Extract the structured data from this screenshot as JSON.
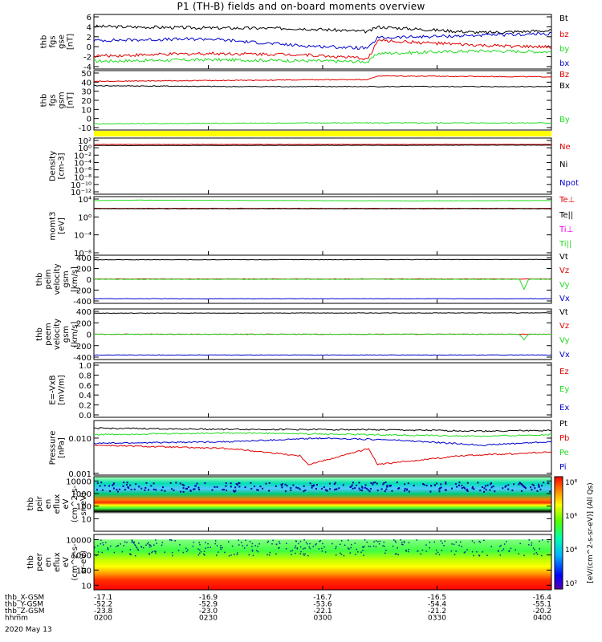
{
  "title": "P1 (TH-B) fields and on-board moments overview",
  "colors": {
    "black": "#000000",
    "red": "#e00000",
    "green": "#22dd22",
    "blue": "#0000cc",
    "magenta": "#ee00ee",
    "yellow": "#ffff00",
    "darkred": "#8b0000"
  },
  "chart_data": [
    {
      "type": "line",
      "id": "fgs_gse",
      "ylabel": [
        "thb",
        "fgs",
        "gse",
        "[nT]"
      ],
      "ylim": [
        -4,
        6.5
      ],
      "yticks": [
        "6",
        "4",
        "2",
        "0",
        "-2",
        "-4"
      ],
      "legend": [
        "Bt",
        "bz",
        "by",
        "bx"
      ],
      "legend_colors": [
        "black",
        "red",
        "green",
        "blue"
      ],
      "series": [
        {
          "name": "Bt",
          "color": "black",
          "x": [
            0,
            0.25,
            0.45,
            0.6,
            0.62,
            0.85,
            1
          ],
          "values": [
            4.2,
            3.9,
            3.8,
            3.2,
            4.1,
            3.0,
            3.4
          ]
        },
        {
          "name": "bz",
          "color": "red",
          "x": [
            0,
            0.25,
            0.45,
            0.6,
            0.62,
            0.85,
            1
          ],
          "values": [
            -1.5,
            -1.0,
            -1.2,
            -2.0,
            1.5,
            0.5,
            0.2
          ]
        },
        {
          "name": "by",
          "color": "green",
          "x": [
            0,
            0.25,
            0.45,
            0.6,
            0.62,
            0.85,
            1
          ],
          "values": [
            -2.5,
            -2.2,
            -2.4,
            -2.6,
            -1.0,
            -0.5,
            -0.7
          ]
        },
        {
          "name": "bx",
          "color": "blue",
          "x": [
            0,
            0.25,
            0.45,
            0.6,
            0.62,
            0.85,
            1
          ],
          "values": [
            1.5,
            1.8,
            0.5,
            0.0,
            2.0,
            2.5,
            2.8
          ]
        }
      ]
    },
    {
      "type": "line",
      "id": "fgs_gsm",
      "ylabel": [
        "thb",
        "fgs",
        "gsm",
        "[nT]"
      ],
      "ylim": [
        -15,
        52
      ],
      "yticks": [
        "50",
        "40",
        "30",
        "20",
        "10",
        "0",
        "-10"
      ],
      "legend": [
        "Bz",
        "Bx",
        "By"
      ],
      "legend_colors": [
        "red",
        "black",
        "green"
      ],
      "series": [
        {
          "name": "Bz",
          "color": "red",
          "x": [
            0,
            0.3,
            0.6,
            0.62,
            1
          ],
          "values": [
            40,
            41,
            42,
            46,
            45
          ]
        },
        {
          "name": "Bx",
          "color": "black",
          "x": [
            0,
            0.3,
            0.6,
            1
          ],
          "values": [
            35,
            34,
            34,
            34
          ]
        },
        {
          "name": "By",
          "color": "green",
          "x": [
            0,
            0.5,
            1
          ],
          "values": [
            -8,
            -7,
            -7
          ]
        }
      ]
    },
    {
      "type": "line",
      "id": "density",
      "log": true,
      "ylabel": [
        "Density",
        "[cm-3]"
      ],
      "ylim": [
        -13,
        2
      ],
      "yticks": [
        "10²",
        "10⁰",
        "10⁻²",
        "10⁻⁴",
        "10⁻⁶",
        "10⁻⁸",
        "10⁻¹⁰",
        "10⁻¹²"
      ],
      "legend": [
        "Ne",
        "Ni",
        "Npot"
      ],
      "legend_colors": [
        "red",
        "black",
        "blue"
      ],
      "series": [
        {
          "name": "Ne",
          "color": "red",
          "x": [
            0,
            1
          ],
          "values": [
            0.3,
            0.3
          ]
        },
        {
          "name": "Ni",
          "color": "black",
          "x": [
            0,
            1
          ],
          "values": [
            0.0,
            0.1
          ]
        }
      ]
    },
    {
      "type": "line",
      "id": "momt3",
      "log": true,
      "ylabel": [
        "momt3",
        "[eV]"
      ],
      "ylim": [
        -12,
        4.5
      ],
      "yticks": [
        "10⁴",
        "10⁰",
        "10⁻⁴",
        "10⁻⁸"
      ],
      "legend": [
        "Te⊥",
        "Te||",
        "Ti⊥",
        "Ti||"
      ],
      "legend_colors": [
        "red",
        "black",
        "magenta",
        "green"
      ],
      "series": [
        {
          "name": "Te⊥",
          "color": "red",
          "x": [
            0,
            1
          ],
          "values": [
            1.2,
            1.2
          ]
        },
        {
          "name": "Te||",
          "color": "black",
          "x": [
            0,
            1
          ],
          "values": [
            1.1,
            1.1
          ]
        },
        {
          "name": "Ti||",
          "color": "green",
          "x": [
            0,
            0.1,
            0.7,
            1
          ],
          "values": [
            3.4,
            3.5,
            3.3,
            3.4
          ]
        }
      ]
    },
    {
      "type": "line",
      "id": "peim",
      "ylabel": [
        "thb",
        "peim",
        "velocity",
        "gsm",
        "[km/s]"
      ],
      "ylim": [
        -420,
        420
      ],
      "yticks": [
        "400",
        "200",
        "0",
        "-200",
        "-400"
      ],
      "legend": [
        "Vt",
        "Vz",
        "Vy",
        "Vx"
      ],
      "legend_colors": [
        "black",
        "red",
        "green",
        "blue"
      ],
      "series": [
        {
          "name": "Vt",
          "color": "black",
          "x": [
            0,
            1
          ],
          "values": [
            340,
            345
          ]
        },
        {
          "name": "Vz",
          "color": "red",
          "x": [
            0,
            1
          ],
          "values": [
            5,
            5
          ]
        },
        {
          "name": "Vy",
          "color": "green",
          "x": [
            0,
            0.93,
            0.94,
            0.95,
            1
          ],
          "values": [
            0,
            0,
            -180,
            0,
            0
          ]
        },
        {
          "name": "Vx",
          "color": "blue",
          "x": [
            0,
            1
          ],
          "values": [
            -340,
            -340
          ]
        }
      ]
    },
    {
      "type": "line",
      "id": "peem",
      "ylabel": [
        "thb",
        "peem",
        "velocity",
        "gsm",
        "[km/s]"
      ],
      "ylim": [
        -420,
        420
      ],
      "yticks": [
        "400",
        "200",
        "0",
        "-200",
        "-400"
      ],
      "legend": [
        "Vt",
        "Vz",
        "Vy",
        "Vx"
      ],
      "legend_colors": [
        "black",
        "red",
        "green",
        "blue"
      ],
      "series": [
        {
          "name": "Vt",
          "color": "black",
          "x": [
            0,
            1
          ],
          "values": [
            350,
            355
          ]
        },
        {
          "name": "Vz",
          "color": "red",
          "x": [
            0,
            1
          ],
          "values": [
            0,
            0
          ]
        },
        {
          "name": "Vy",
          "color": "green",
          "x": [
            0,
            0.93,
            0.94,
            0.95,
            1
          ],
          "values": [
            0,
            0,
            -90,
            0,
            0
          ]
        },
        {
          "name": "Vx",
          "color": "blue",
          "x": [
            0,
            1
          ],
          "values": [
            -345,
            -345
          ]
        }
      ]
    },
    {
      "type": "line",
      "id": "efield",
      "ylabel": [
        "E=-VxB",
        "[mV/m]"
      ],
      "ylim": [
        0,
        1
      ],
      "yticks": [
        "1.0",
        "0.8",
        "0.6",
        "0.4",
        "0.2",
        "0.0"
      ],
      "legend": [
        "Ez",
        "Ey",
        "Ex"
      ],
      "legend_colors": [
        "red",
        "green",
        "blue"
      ],
      "series": []
    },
    {
      "type": "line",
      "id": "pressure",
      "log": true,
      "ylabel": [
        "Pressure",
        "[nPa]"
      ],
      "ylim": [
        -3.05,
        -1.5
      ],
      "yticks": [
        "0.010",
        "0.001"
      ],
      "ytick_values": [
        -2,
        -3
      ],
      "legend": [
        "Pt",
        "Pb",
        "Pe",
        "Pi"
      ],
      "legend_colors": [
        "black",
        "red",
        "green",
        "blue"
      ],
      "series": [
        {
          "name": "Pt",
          "color": "black",
          "x": [
            0,
            0.3,
            0.6,
            0.85,
            1
          ],
          "values": [
            -1.72,
            -1.75,
            -1.76,
            -1.8,
            -1.78
          ]
        },
        {
          "name": "Pb",
          "color": "red",
          "x": [
            0,
            0.3,
            0.45,
            0.47,
            0.6,
            0.62,
            0.8,
            1
          ],
          "values": [
            -2.2,
            -2.3,
            -2.5,
            -2.75,
            -2.3,
            -2.75,
            -2.5,
            -2.4
          ]
        },
        {
          "name": "Pe",
          "color": "green",
          "x": [
            0,
            0.3,
            0.6,
            0.85,
            1
          ],
          "values": [
            -1.9,
            -1.85,
            -1.9,
            -1.95,
            -1.9
          ]
        },
        {
          "name": "Pi",
          "color": "blue",
          "x": [
            0,
            0.3,
            0.5,
            0.65,
            0.85,
            1
          ],
          "values": [
            -2.15,
            -2.1,
            -2.0,
            -2.05,
            -2.2,
            -2.1
          ]
        }
      ]
    },
    {
      "type": "heatmap",
      "id": "peir",
      "ylabel": [
        "thb",
        "peir",
        "en",
        "eflux",
        "eV",
        "(cm^2-s-",
        "sr-eV)"
      ],
      "ylim": [
        1,
        22000
      ],
      "yticks": [
        "10000",
        "1000",
        "100",
        "10"
      ],
      "ytick_values": [
        10000,
        1000,
        100,
        10
      ],
      "colorbar_label": "[eV/(cm^2-s-sr-eV)] (All Qs)"
    },
    {
      "type": "heatmap",
      "id": "peer",
      "ylabel": [
        "thb",
        "peer",
        "en",
        "eflux",
        "eV",
        "(cm^2-s-",
        "sr-eV)"
      ],
      "ylim": [
        5,
        22000
      ],
      "yticks": [
        "10000",
        "1000",
        "100",
        "10"
      ],
      "ytick_values": [
        10000,
        1000,
        100,
        10
      ],
      "colorbar_label": "[eV/(cm^2-s-sr-eV)] (All Qs)"
    }
  ],
  "colorbar": {
    "ticks": [
      "10⁸",
      "10⁶",
      "10⁴",
      "10²"
    ]
  },
  "x_axis": {
    "rows": [
      {
        "label": "thb_X-GSM",
        "values": [
          "-17.1",
          "-16.9",
          "-16.7",
          "-16.5",
          "-16.4"
        ]
      },
      {
        "label": "thb_Y-GSM",
        "values": [
          "-52.2",
          "-52.9",
          "-53.6",
          "-54.4",
          "-55.1"
        ]
      },
      {
        "label": "thb_Z-GSM",
        "values": [
          "-23.8",
          "-23.0",
          "-22.1",
          "-21.2",
          "-20.2"
        ]
      },
      {
        "label": "hhmm",
        "values": [
          "0200",
          "0230",
          "0300",
          "0330",
          "0400"
        ]
      }
    ],
    "date": "2020 May 13"
  }
}
